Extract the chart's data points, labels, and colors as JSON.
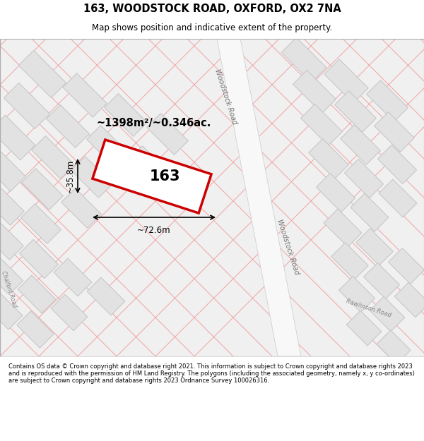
{
  "title": "163, WOODSTOCK ROAD, OXFORD, OX2 7NA",
  "subtitle": "Map shows position and indicative extent of the property.",
  "footer": "Contains OS data © Crown copyright and database right 2021. This information is subject to Crown copyright and database rights 2023 and is reproduced with the permission of HM Land Registry. The polygons (including the associated geometry, namely x, y co-ordinates) are subject to Crown copyright and database rights 2023 Ordnance Survey 100026316.",
  "highlight_label": "163",
  "area_text": "~1398m²/~0.346ac.",
  "width_text": "~72.6m",
  "height_text": "~35.8m",
  "woodstock_road_label1": "Woodstock Road",
  "woodstock_road_label2": "Woodstock Road",
  "chalfont_road_label": "Chalfont Road",
  "rawlinson_road_label": "Rawlinson Road",
  "bg_color": "#f0f0f0",
  "road_fill": "#f8f8f8",
  "building_fill": "#e2e2e2",
  "building_ec": "#c8c8c8",
  "grid_color": "#f0a0a0",
  "prop_fill": "#ffffff",
  "prop_ec": "#cc0000",
  "road_ec": "#d0d0d0"
}
